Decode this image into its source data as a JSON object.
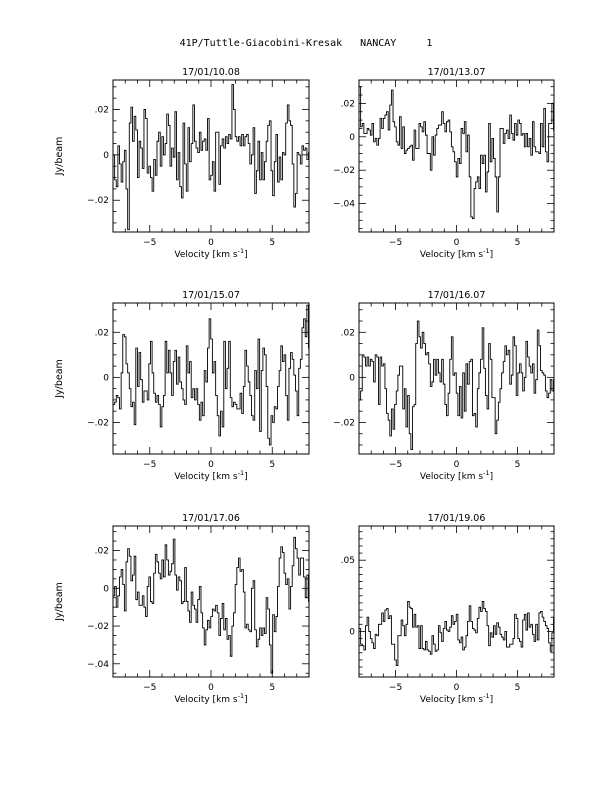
{
  "title": "41P/Tuttle-Giacobini-Kresak   NANCAY     1",
  "chart_data": [
    {
      "type": "line",
      "title": "17/01/10.08",
      "xlabel": "Velocity [km s",
      "xlabel_sup": "-1",
      "xlabel_close": "]",
      "ylabel": "Jy/beam",
      "xlim": [
        -8,
        8
      ],
      "ylim": [
        -0.034,
        0.033
      ],
      "xticks": [
        -5,
        0,
        5
      ],
      "yticks": [
        -0.02,
        0,
        0.02
      ],
      "x_start": -8.0,
      "x_step": 0.133,
      "values": [
        0.0,
        -0.011,
        -0.014,
        0.004,
        -0.004,
        -0.012,
        -0.003,
        0.002,
        -0.015,
        -0.033,
        0.014,
        0.021,
        0.006,
        0.017,
        0.011,
        -0.01,
        0.006,
        0.003,
        -0.006,
        0.02,
        0.016,
        -0.008,
        -0.005,
        -0.01,
        -0.016,
        -0.002,
        -0.009,
        0.006,
        0.01,
        -0.005,
        0.008,
        0.0,
        0.005,
        0.018,
        0.013,
        -0.005,
        0.003,
        -0.001,
        0.019,
        -0.011,
        0.001,
        -0.014,
        -0.019,
        0.014,
        -0.004,
        -0.016,
        0.012,
        -0.003,
        0.005,
        0.022,
        0.006,
        0.003,
        0.001,
        0.01,
        0.002,
        0.006,
        0.007,
        0.002,
        0.016,
        -0.011,
        -0.009,
        -0.003,
        -0.016,
        0.01,
        0.01,
        -0.013,
        0.004,
        0.007,
        0.003,
        0.008,
        0.005,
        0.009,
        0.007,
        0.031,
        0.02,
        0.008,
        0.006,
        0.008,
        0.004,
        0.009,
        0.004,
        0.008,
        0.009,
        0.005,
        -0.004,
        0.0,
        0.012,
        -0.017,
        -0.007,
        0.006,
        -0.011,
        0.001,
        -0.011,
        -0.003,
        0.006,
        0.013,
        0.015,
        -0.007,
        -0.018,
        -0.003,
        0.009,
        -0.012,
        -0.001,
        -0.011,
        0.001,
        0.0,
        0.014,
        0.022,
        0.015,
        0.013,
        -0.004,
        -0.023,
        -0.017,
        0.001,
        0.0,
        -0.004,
        0.004,
        0.002,
        0.003,
        -0.002,
        0.001,
        0.002
      ]
    },
    {
      "type": "line",
      "title": "17/01/13.07",
      "xlabel": "Velocity [km s",
      "xlabel_sup": "-1",
      "xlabel_close": "]",
      "ylabel": "",
      "xlim": [
        -8,
        8
      ],
      "ylim": [
        -0.057,
        0.034
      ],
      "xticks": [
        -5,
        0,
        5
      ],
      "yticks": [
        -0.04,
        -0.02,
        0,
        0.02
      ],
      "x_start": -8.0,
      "x_step": 0.133,
      "values": [
        0.03,
        0.006,
        0.008,
        0.002,
        0.002,
        0.005,
        0.004,
        0.001,
        0.008,
        -0.003,
        -0.001,
        -0.005,
        -0.001,
        0.011,
        0.005,
        0.011,
        0.013,
        0.015,
        0.004,
        0.019,
        0.028,
        0.009,
        0.006,
        -0.003,
        -0.005,
        0.012,
        -0.007,
        0.006,
        -0.01,
        -0.008,
        -0.007,
        -0.006,
        -0.005,
        -0.014,
        0.004,
        -0.007,
        -0.007,
        0.008,
        0.006,
        0.003,
        0.009,
        0.001,
        -0.01,
        -0.01,
        -0.02,
        0.0,
        -0.011,
        0.001,
        0.005,
        0.007,
        0.007,
        0.015,
        0.008,
        0.003,
        0.009,
        0.01,
        0.003,
        -0.006,
        -0.009,
        -0.015,
        -0.024,
        -0.013,
        -0.016,
        0.005,
        0.002,
        0.009,
        -0.009,
        0.001,
        -0.024,
        -0.048,
        -0.049,
        -0.031,
        -0.027,
        -0.024,
        -0.031,
        -0.011,
        -0.016,
        -0.011,
        -0.033,
        -0.021,
        0.008,
        -0.015,
        -0.001,
        -0.013,
        -0.024,
        -0.045,
        -0.024,
        0.005,
        0.005,
        -0.004,
        0.002,
        0.004,
        -0.001,
        0.013,
        0.002,
        -0.002,
        0.008,
        0.001,
        0.01,
        0.008,
        0.001,
        0.002,
        -0.006,
        0.002,
        -0.006,
        -0.001,
        -0.011,
        0.009,
        -0.006,
        -0.009,
        -0.009,
        -0.01,
        0.008,
        -0.006,
        0.017,
        -0.009,
        -0.015,
        0.008,
        0.008,
        0.02,
        0.004
      ]
    },
    {
      "type": "line",
      "title": "17/01/15.07",
      "xlabel": "Velocity [km s",
      "xlabel_sup": "-1",
      "xlabel_close": "]",
      "ylabel": "Jy/beam",
      "xlim": [
        -8,
        8
      ],
      "ylim": [
        -0.034,
        0.033
      ],
      "xticks": [
        -5,
        0,
        5
      ],
      "yticks": [
        -0.02,
        0,
        0.02
      ],
      "x_start": -8.0,
      "x_step": 0.133,
      "values": [
        -0.012,
        -0.011,
        -0.008,
        -0.009,
        -0.014,
        0.002,
        0.019,
        0.018,
        0.006,
        0.002,
        -0.005,
        -0.013,
        -0.011,
        -0.021,
        0.013,
        -0.004,
        0.011,
        -0.001,
        -0.011,
        -0.006,
        -0.006,
        -0.01,
        0.006,
        0.016,
        0.002,
        -0.007,
        -0.011,
        -0.008,
        -0.012,
        -0.022,
        -0.013,
        -0.008,
        0.016,
        0.002,
        0.012,
        0.002,
        -0.008,
        0.007,
        0.012,
        -0.003,
        0.009,
        -0.002,
        -0.005,
        -0.01,
        -0.012,
        0.014,
        0.002,
        0.007,
        -0.009,
        -0.005,
        -0.01,
        -0.005,
        -0.012,
        -0.019,
        -0.011,
        -0.017,
        0.003,
        -0.002,
        0.013,
        0.026,
        0.017,
        0.002,
        0.007,
        -0.008,
        -0.017,
        -0.026,
        -0.015,
        -0.022,
        0.016,
        -0.005,
        0.004,
        0.016,
        -0.009,
        -0.013,
        -0.011,
        -0.012,
        -0.014,
        -0.014,
        -0.007,
        -0.016,
        -0.004,
        0.012,
        0.005,
        -0.002,
        -0.008,
        -0.017,
        -0.019,
        0.003,
        -0.005,
        0.017,
        -0.024,
        0.003,
        0.013,
        0.01,
        -0.004,
        -0.027,
        -0.03,
        -0.017,
        -0.02,
        -0.013,
        -0.014,
        -0.004,
        0.003,
        0.014,
        0.007,
        0.01,
        -0.008,
        -0.019,
        0.004,
        0.011,
        0.008,
        0.001,
        -0.006,
        -0.017,
        0.004,
        0.008,
        0.022,
        0.026,
        0.018,
        0.032,
        0.013
      ]
    },
    {
      "type": "line",
      "title": "17/01/16.07",
      "xlabel": "Velocity [km s",
      "xlabel_sup": "-1",
      "xlabel_close": "]",
      "ylabel": "",
      "xlim": [
        -8,
        8
      ],
      "ylim": [
        -0.034,
        0.033
      ],
      "xticks": [
        -5,
        0,
        5
      ],
      "yticks": [
        -0.02,
        0,
        0.02
      ],
      "x_start": -8.0,
      "x_step": 0.133,
      "values": [
        -0.01,
        -0.006,
        0.01,
        0.009,
        0.005,
        0.009,
        0.005,
        0.008,
        0.007,
        -0.002,
        0.01,
        0.009,
        -0.012,
        0.009,
        0.005,
        0.006,
        -0.005,
        -0.016,
        -0.019,
        -0.026,
        -0.014,
        -0.023,
        -0.012,
        -0.006,
        0.001,
        0.005,
        0.005,
        -0.014,
        -0.005,
        -0.022,
        -0.008,
        -0.025,
        -0.032,
        -0.013,
        -0.012,
        0.015,
        0.025,
        0.018,
        0.013,
        0.02,
        0.015,
        0.01,
        0.011,
        0.006,
        -0.004,
        -0.002,
        0.008,
        0.001,
        0.008,
        0.002,
        -0.002,
        0.008,
        -0.003,
        -0.012,
        -0.017,
        -0.007,
        0.008,
        0.018,
        0.001,
        0.002,
        -0.007,
        -0.017,
        -0.004,
        -0.018,
        0.002,
        -0.015,
        0.006,
        -0.003,
        0.007,
        0.008,
        -0.017,
        -0.016,
        -0.022,
        -0.005,
        0.002,
        0.008,
        0.022,
        0.004,
        -0.008,
        -0.014,
        0.015,
        0.008,
        -0.009,
        -0.009,
        -0.025,
        -0.019,
        -0.011,
        -0.005,
        0.002,
        0.007,
        0.014,
        0.01,
        0.012,
        -0.003,
        0.001,
        0.018,
        0.014,
        -0.008,
        0.002,
        0.006,
        0.002,
        -0.006,
        0.0,
        0.016,
        0.009,
        0.005,
        0.002,
        0.006,
        -0.007,
        -0.001,
        0.021,
        0.014,
        0.003,
        0.002,
        0.001,
        -0.006,
        -0.009,
        -0.007,
        -0.001,
        -0.006,
        -0.001
      ]
    },
    {
      "type": "line",
      "title": "17/01/17.06",
      "xlabel": "Velocity [km s",
      "xlabel_sup": "-1",
      "xlabel_close": "]",
      "ylabel": "Jy/beam",
      "xlim": [
        -8,
        8
      ],
      "ylim": [
        -0.047,
        0.033
      ],
      "xticks": [
        -5,
        0,
        5
      ],
      "yticks": [
        -0.04,
        -0.02,
        0,
        0.02
      ],
      "x_start": -8.0,
      "x_step": 0.133,
      "values": [
        -0.004,
        0.001,
        -0.01,
        -0.004,
        0.006,
        0.01,
        0.002,
        -0.012,
        0.014,
        0.021,
        0.017,
        0.004,
        0.007,
        0.017,
        -0.006,
        -0.002,
        -0.009,
        -0.009,
        -0.004,
        -0.01,
        -0.015,
        0.001,
        0.006,
        -0.007,
        -0.008,
        0.008,
        0.018,
        0.014,
        0.008,
        0.005,
        0.015,
        0.006,
        0.023,
        0.015,
        0.007,
        0.009,
        0.013,
        0.026,
        0.007,
        -0.001,
        0.006,
        0.004,
        -0.008,
        -0.007,
        0.011,
        -0.007,
        -0.012,
        -0.018,
        -0.002,
        -0.009,
        -0.011,
        -0.018,
        -0.006,
        0.001,
        -0.013,
        -0.021,
        -0.03,
        -0.022,
        -0.017,
        -0.021,
        -0.015,
        -0.011,
        -0.012,
        -0.009,
        -0.013,
        -0.025,
        -0.016,
        -0.008,
        -0.022,
        -0.016,
        -0.027,
        -0.025,
        -0.036,
        -0.02,
        -0.013,
        0.002,
        0.011,
        0.016,
        0.009,
        0.01,
        -0.002,
        -0.021,
        -0.019,
        -0.022,
        -0.023,
        0.0,
        0.004,
        -0.022,
        -0.031,
        -0.027,
        -0.021,
        -0.025,
        -0.021,
        -0.024,
        -0.005,
        -0.011,
        -0.03,
        -0.045,
        -0.014,
        -0.023,
        -0.015,
        0.001,
        0.016,
        0.022,
        0.019,
        0.008,
        0.002,
        0.005,
        -0.011,
        0.001,
        0.012,
        0.027,
        0.021,
        0.016,
        0.007,
        0.016,
        0.016,
        0.006,
        -0.005,
        0.007,
        -0.007
      ]
    },
    {
      "type": "line",
      "title": "17/01/19.06",
      "xlabel": "Velocity [km s",
      "xlabel_sup": "-1",
      "xlabel_close": "]",
      "ylabel": "",
      "xlim": [
        -8,
        8
      ],
      "ylim": [
        -0.032,
        0.074
      ],
      "xticks": [
        -5,
        0,
        5
      ],
      "yticks": [
        0,
        0.05
      ],
      "x_start": -8.0,
      "x_step": 0.133,
      "values": [
        0.002,
        -0.009,
        -0.01,
        -0.013,
        0.004,
        0.01,
        0.0,
        -0.005,
        -0.008,
        -0.012,
        -0.002,
        -0.003,
        0.005,
        0.005,
        0.013,
        0.007,
        0.015,
        0.016,
        0.009,
        0.011,
        -0.009,
        -0.009,
        -0.02,
        -0.024,
        -0.003,
        -0.003,
        0.008,
        0.004,
        -0.003,
        0.005,
        0.021,
        0.017,
        0.016,
        0.003,
        0.012,
        0.003,
        0.004,
        -0.012,
        0.004,
        -0.012,
        -0.013,
        -0.007,
        -0.013,
        -0.014,
        -0.016,
        -0.003,
        -0.009,
        -0.014,
        -0.013,
        0.004,
        -0.001,
        -0.007,
        0.002,
        0.007,
        0.001,
        0.0,
        0.003,
        0.011,
        0.005,
        0.007,
        0.012,
        -0.006,
        -0.008,
        -0.004,
        -0.013,
        -0.011,
        -0.003,
        0.007,
        0.018,
        0.007,
        0.002,
        0.001,
        -0.001,
        0.009,
        0.017,
        0.014,
        0.021,
        0.016,
        0.014,
        0.004,
        -0.01,
        -0.001,
        -0.004,
        0.004,
        -0.002,
        0.006,
        0.003,
        -0.002,
        -0.004,
        -0.006,
        0.0,
        -0.011,
        -0.011,
        -0.009,
        -0.009,
        -0.005,
        0.012,
        0.009,
        -0.005,
        -0.007,
        -0.011,
        0.008,
        0.012,
        0.001,
        0.013,
        0.003,
        0.005,
        -0.002,
        -0.007,
        0.005,
        -0.006,
        0.013,
        0.014,
        0.01,
        0.007,
        0.004,
        0.002,
        -0.008,
        -0.014,
        -0.001,
        0.01
      ]
    }
  ]
}
